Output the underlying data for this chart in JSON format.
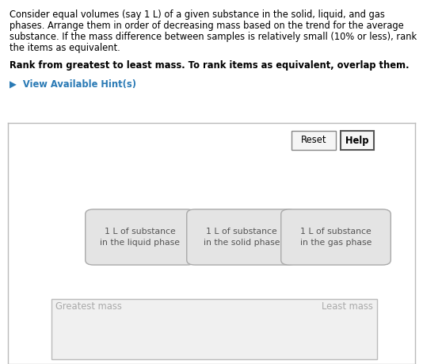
{
  "bg_color": "#ffffff",
  "panel_bg": "#ffffff",
  "panel_border": "#bbbbbb",
  "text_color": "#000000",
  "hint_color": "#2a7ab5",
  "normal_text_lines": [
    "Consider equal volumes (say 1 L) of a given substance in the solid, liquid, and gas",
    "phases. Arrange them in order of decreasing mass based on the trend for the average",
    "substance. If the mass difference between samples is relatively small (10% or less), rank",
    "the items as equivalent."
  ],
  "bold_text": "Rank from greatest to least mass. To rank items as equivalent, overlap them.",
  "hint_text": "▶  View Available Hint(s)",
  "boxes": [
    {
      "label": "1 L of substance\nin the liquid phase"
    },
    {
      "label": "1 L of substance\nin the solid phase"
    },
    {
      "label": "1 L of substance\nin the gas phase"
    }
  ],
  "box_facecolor": "#e4e4e4",
  "box_edgecolor": "#aaaaaa",
  "reset_label": "Reset",
  "help_label": "Help",
  "greatest_label": "Greatest mass",
  "least_label": "Least mass"
}
